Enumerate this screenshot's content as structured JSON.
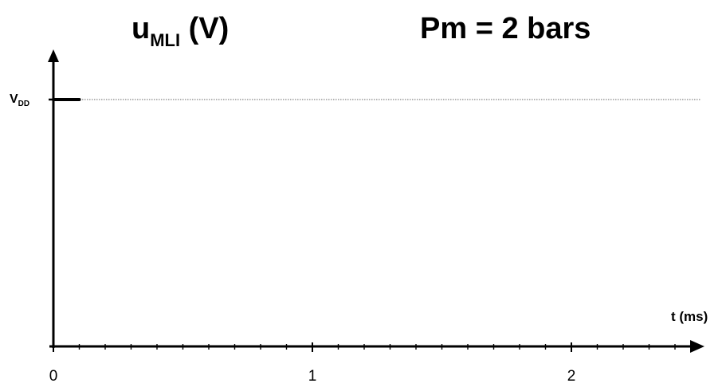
{
  "title": {
    "y_symbol": "u",
    "y_subscript": "MLI",
    "y_unit": " (V)",
    "condition": "Pm = 2 bars"
  },
  "chart_data": {
    "type": "line",
    "title": "Pm = 2 bars",
    "xlabel": "t (ms)",
    "ylabel": "uMLI (V)",
    "x_ticks": [
      "0",
      "1",
      "2"
    ],
    "xlim": [
      0,
      2.5
    ],
    "minor_ticks_per_unit": 10,
    "y_reference": {
      "label_main": "V",
      "label_sub": "DD",
      "value": "VDD",
      "line_style": "dotted",
      "line_color": "#9a9a9a"
    },
    "series": [
      {
        "x": [
          0,
          0.1
        ],
        "y": [
          "VDD",
          "VDD"
        ]
      }
    ],
    "grid": false,
    "legend": "none"
  },
  "colors": {
    "axis": "#000000",
    "reference_line": "#9a9a9a",
    "signal": "#000000"
  }
}
